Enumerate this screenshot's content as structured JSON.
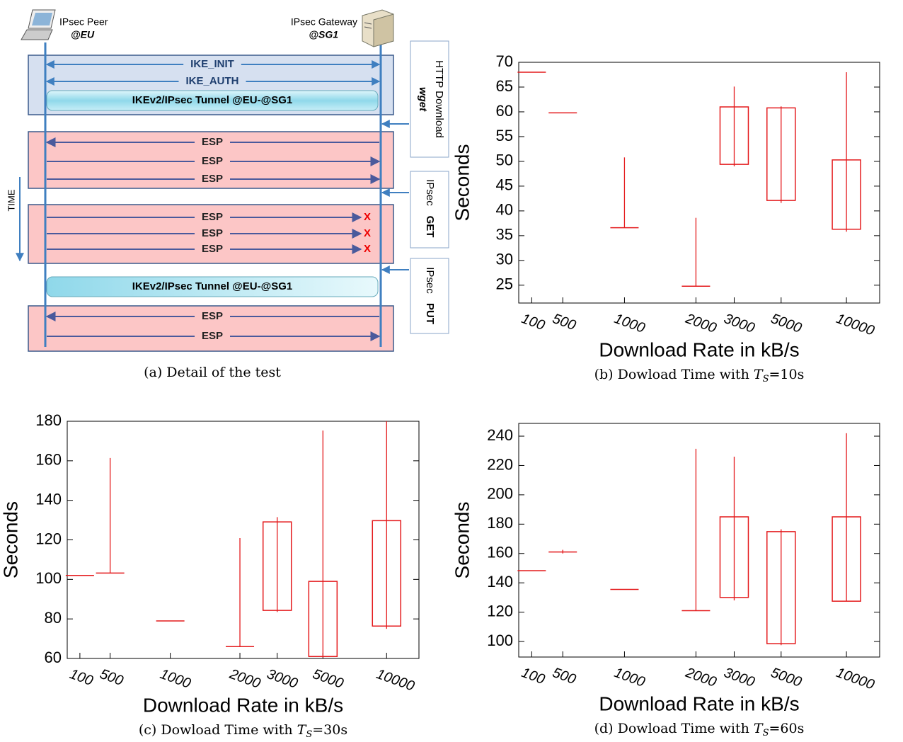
{
  "diagram": {
    "peer": {
      "name": "IPsec Peer",
      "addr": "@EU"
    },
    "gateway": {
      "name": "IPsec Gateway",
      "addr": "@SG1"
    },
    "messages": [
      {
        "label": "IKE_INIT"
      },
      {
        "label": "IKE_AUTH"
      },
      {
        "label": "ESP"
      },
      {
        "label": "ESP"
      },
      {
        "label": "ESP"
      },
      {
        "label": "ESP",
        "drop": "X"
      },
      {
        "label": "ESP",
        "drop": "X"
      },
      {
        "label": "ESP",
        "drop": "X"
      },
      {
        "label": "ESP"
      },
      {
        "label": "ESP"
      }
    ],
    "tunnels": [
      "IKEv2/IPsec Tunnel @EU-@SG1",
      "IKEv2/IPsec Tunnel @EU-@SG1"
    ],
    "phases": [
      {
        "text": "HTTP  Download",
        "bold": "wget"
      },
      {
        "text": "IPsec",
        "bold": "GET"
      },
      {
        "text": "IPsec",
        "bold": "PUT"
      }
    ],
    "time": "TIME",
    "caption": "(a) Detail of the test"
  },
  "chart_data": [
    {
      "type": "box",
      "color": "#e41a1c",
      "categories": [
        "100",
        "500",
        "1000",
        "2000",
        "3000",
        "5000",
        "10000"
      ],
      "min": [
        68,
        59.8,
        36.6,
        24.8,
        49,
        41.6,
        35.8
      ],
      "q1": [
        68,
        59.8,
        36.6,
        24.8,
        49.4,
        42.1,
        36.3
      ],
      "q3": [
        68,
        59.8,
        36.6,
        24.8,
        61,
        60.8,
        50.3
      ],
      "max": [
        68,
        59.8,
        50.8,
        38.6,
        65.1,
        61.1,
        68
      ],
      "ylim": [
        21.4,
        70
      ],
      "yticks": [
        25,
        30,
        35,
        40,
        45,
        50,
        55,
        60,
        65,
        70
      ],
      "xlabel": "Download Rate in kB/s",
      "ylabel": "Seconds",
      "caption": {
        "prefix": "(b) Dowload Time with ",
        "var": "T",
        "sub": "S",
        "rest": "=10s"
      }
    },
    {
      "type": "box",
      "color": "#e41a1c",
      "categories": [
        "100",
        "500",
        "1000",
        "2000",
        "3000",
        "5000",
        "10000"
      ],
      "min": [
        102,
        103.2,
        79,
        66,
        83.5,
        60.5,
        75
      ],
      "q1": [
        102,
        103.2,
        79,
        66,
        84.3,
        61,
        76.4
      ],
      "q3": [
        102,
        103.2,
        79,
        66,
        129.1,
        99,
        129.7
      ],
      "max": [
        102,
        161.4,
        79,
        120.9,
        131.5,
        175.3,
        180
      ],
      "ylim": [
        60,
        180
      ],
      "yticks": [
        60,
        80,
        100,
        120,
        140,
        160,
        180
      ],
      "xlabel": "Download Rate in kB/s",
      "ylabel": "Seconds",
      "caption": {
        "prefix": "(c) Dowload Time with ",
        "var": "T",
        "sub": "S",
        "rest": "=30s"
      }
    },
    {
      "type": "box",
      "color": "#e41a1c",
      "categories": [
        "100",
        "500",
        "1000",
        "2000",
        "3000",
        "5000",
        "10000"
      ],
      "min": [
        148.3,
        160,
        135.5,
        121,
        128,
        97.5,
        127.5
      ],
      "q1": [
        148.3,
        161,
        135.5,
        121,
        130,
        98.5,
        127.5
      ],
      "q3": [
        148.3,
        161,
        135.5,
        121,
        185,
        174.9,
        185
      ],
      "max": [
        148.3,
        162.5,
        135.5,
        231.4,
        226,
        176.5,
        242
      ],
      "ylim": [
        89.4,
        248.7
      ],
      "yticks": [
        100,
        120,
        140,
        160,
        180,
        200,
        220,
        240
      ],
      "xlabel": "Download Rate in kB/s",
      "ylabel": "Seconds",
      "caption": {
        "prefix": "(d) Dowload Time with ",
        "var": "T",
        "sub": "S",
        "rest": "=60s"
      }
    }
  ]
}
